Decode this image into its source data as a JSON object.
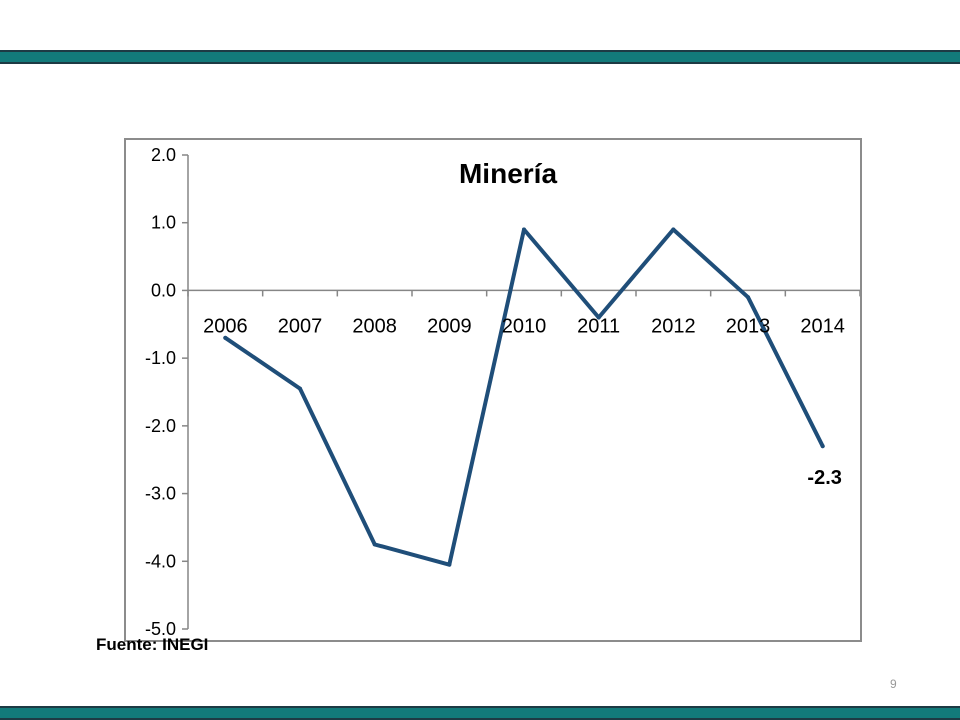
{
  "slide": {
    "source": "Fuente: INEGI",
    "page_number": "9",
    "colors": {
      "band": "#127a7a",
      "band_border": "#1d3a44"
    }
  },
  "chart_data": {
    "type": "line",
    "title": "Minería",
    "xlabel": "",
    "ylabel": "",
    "categories": [
      "2006",
      "2007",
      "2008",
      "2009",
      "2010",
      "2011",
      "2012",
      "2013",
      "2014"
    ],
    "series": [
      {
        "values": [
          -0.7,
          -1.45,
          -3.75,
          -4.05,
          0.9,
          -0.4,
          0.9,
          -0.1,
          -2.3
        ],
        "color": "#1f4e79"
      }
    ],
    "ylim": [
      -5.0,
      2.0
    ],
    "yticks": [
      "2.0",
      "1.0",
      "0.0",
      "-1.0",
      "-2.0",
      "-3.0",
      "-4.0",
      "-5.0"
    ],
    "data_labels": [
      {
        "category": "2014",
        "text": "-2.3"
      }
    ],
    "grid": false,
    "legend": "none"
  }
}
